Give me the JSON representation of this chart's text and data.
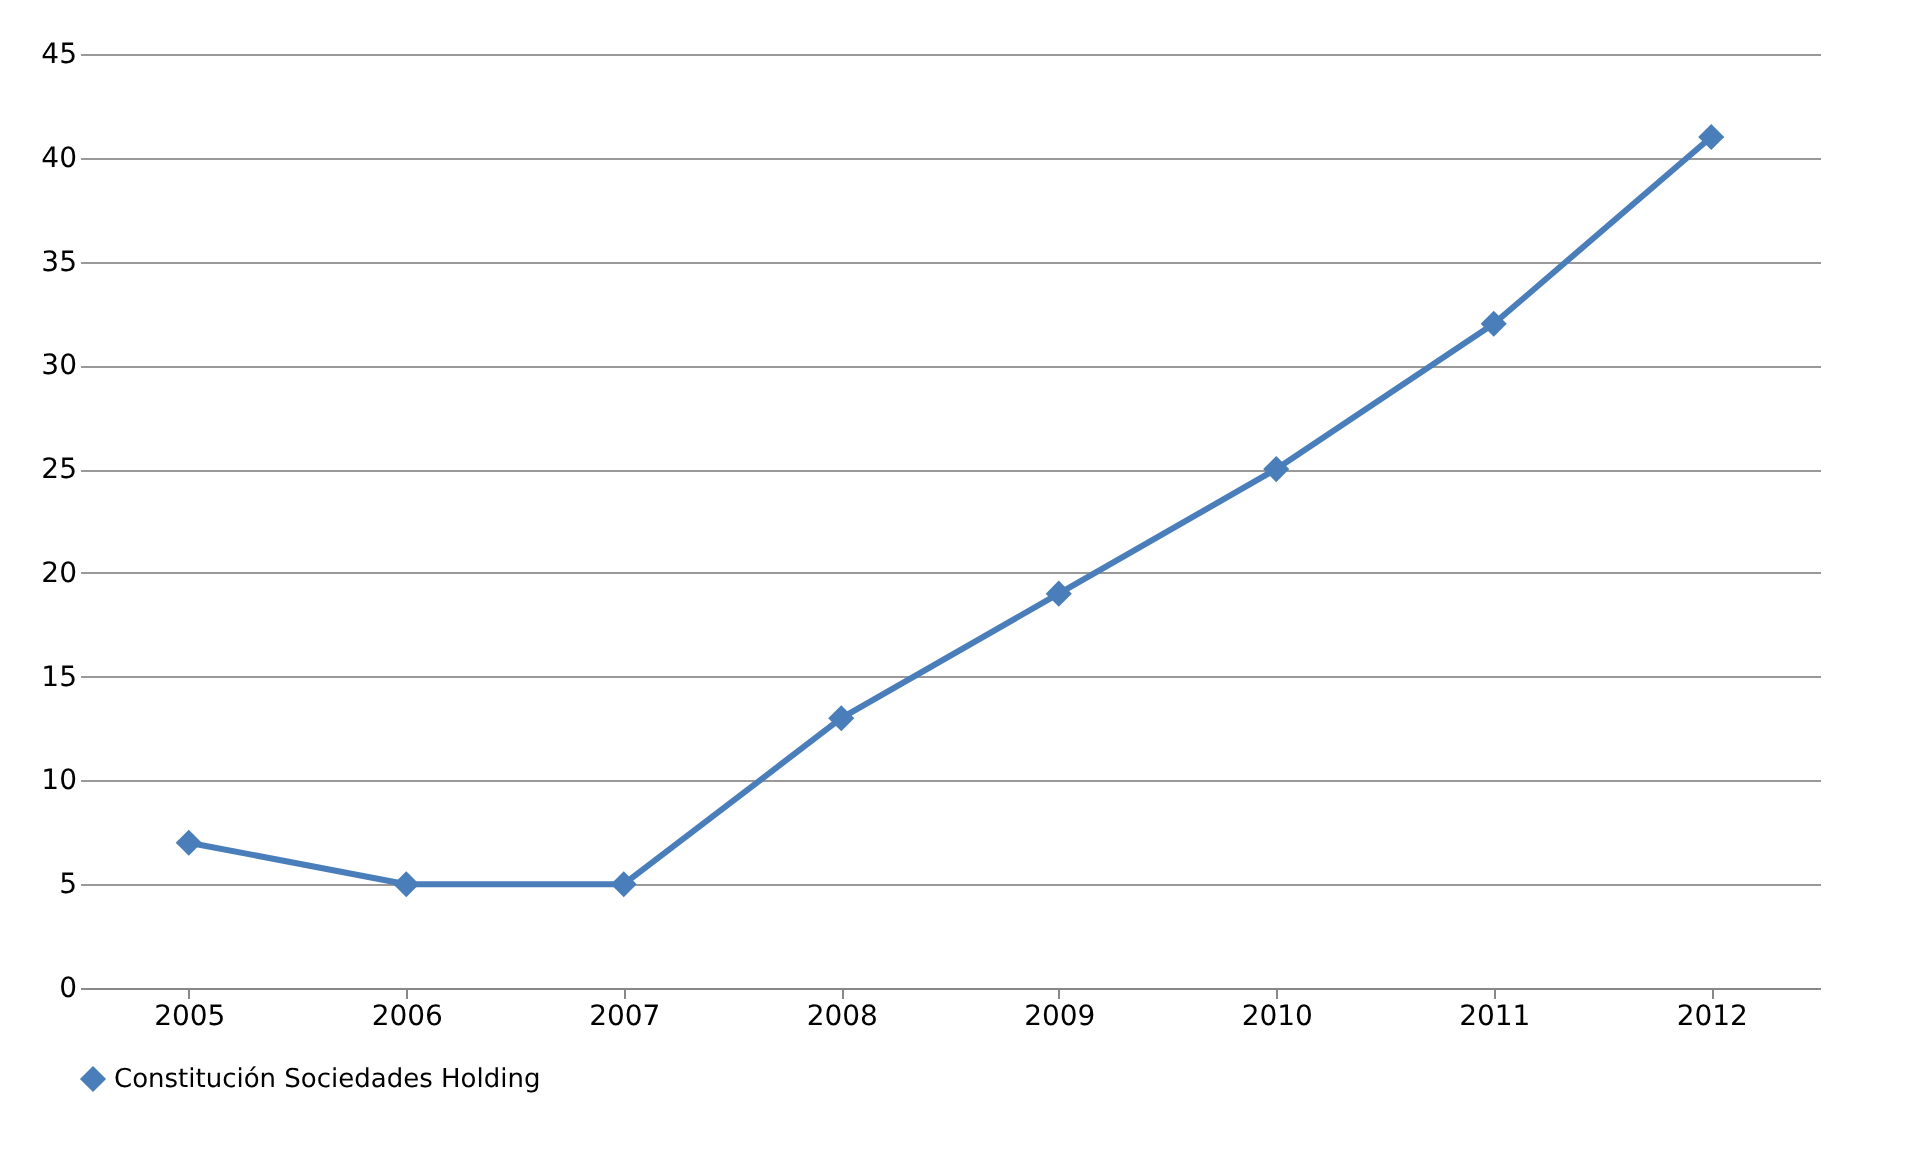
{
  "chart_data": {
    "type": "line",
    "categories": [
      "2005",
      "2006",
      "2007",
      "2008",
      "2009",
      "2010",
      "2011",
      "2012"
    ],
    "series": [
      {
        "name": "Constitución Sociedades Holding",
        "color": "#4a7ebb",
        "values": [
          7,
          5,
          5,
          13,
          19,
          25,
          32,
          41
        ]
      }
    ],
    "ylim": [
      0,
      45
    ],
    "yticks": [
      0,
      5,
      10,
      15,
      20,
      25,
      30,
      35,
      40,
      45
    ],
    "grid": "y",
    "legend": "bottom",
    "marker": "diamond",
    "line_style": "solid"
  }
}
